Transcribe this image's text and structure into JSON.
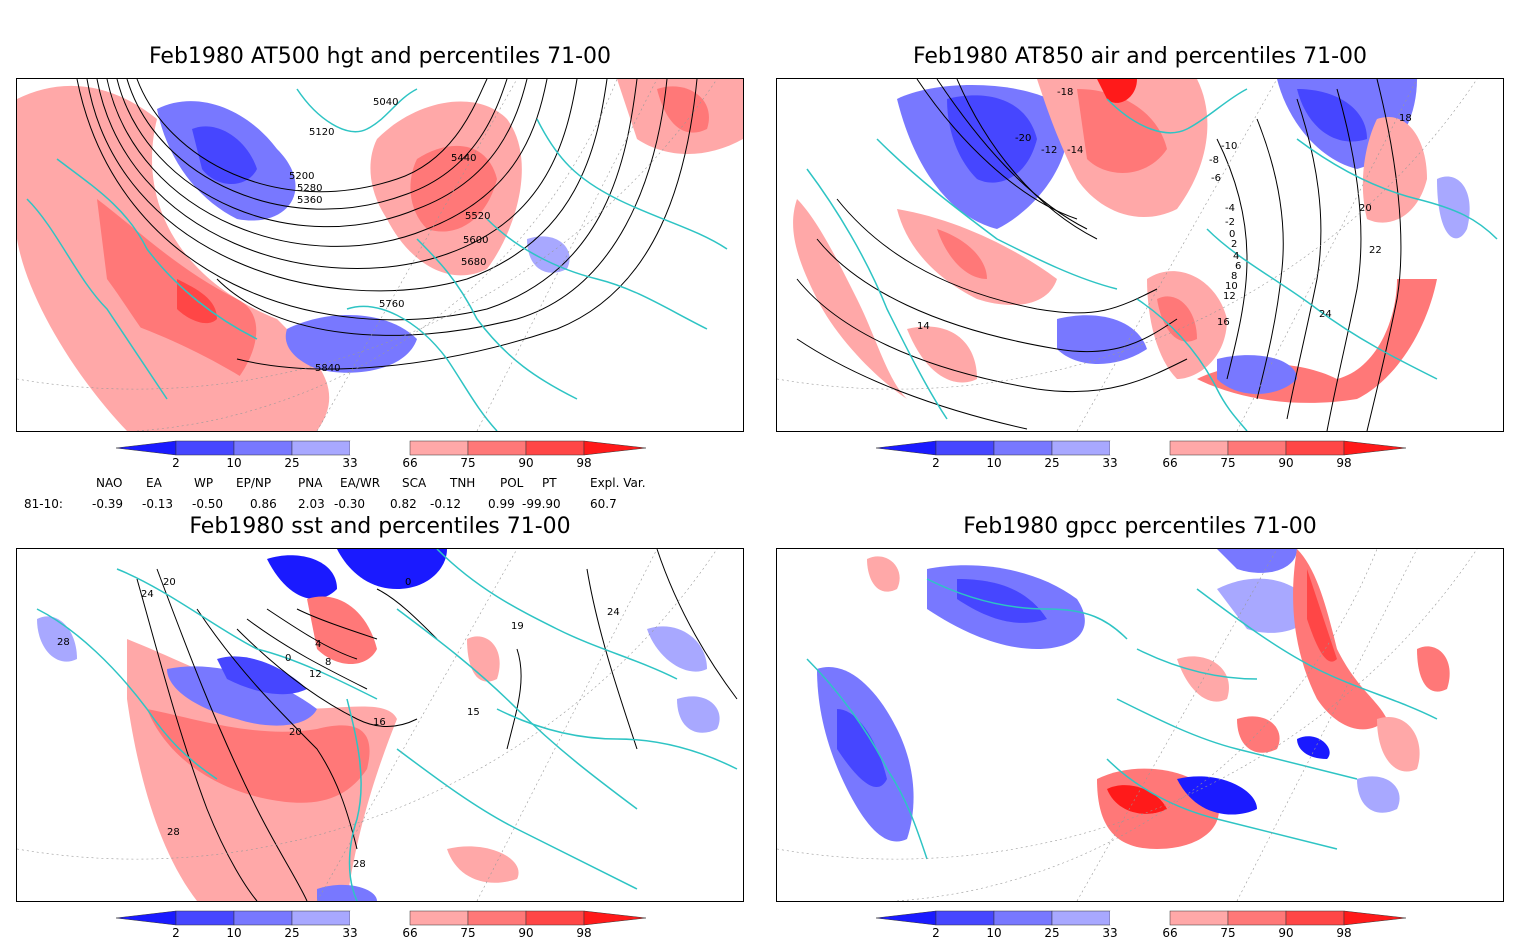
{
  "panels": {
    "hgt": {
      "title": "Feb1980 AT500 hgt and percentiles 71-00",
      "contour_labels": [
        "5040",
        "5120",
        "5200",
        "5280",
        "5360",
        "5440",
        "5520",
        "5600",
        "5680",
        "5760",
        "5840"
      ]
    },
    "air": {
      "title": "Feb1980 AT850 air and percentiles 71-00",
      "contour_labels": [
        "-18",
        "-20",
        "-12",
        "-14",
        "-8",
        "-10",
        "-6",
        "-4",
        "-2",
        "0",
        "2",
        "4",
        "6",
        "8",
        "10",
        "12",
        "14",
        "16",
        "18",
        "20",
        "22",
        "24"
      ]
    },
    "sst": {
      "title": "Feb1980 sst and percentiles 71-00",
      "contour_labels": [
        "24",
        "20",
        "28",
        "0",
        "4",
        "8",
        "12",
        "16",
        "20",
        "28",
        "15",
        "19",
        "24",
        "28",
        "0"
      ]
    },
    "gpcc": {
      "title": "Feb1980 gpcc percentiles 71-00"
    }
  },
  "colorbar": {
    "ticks": [
      "2",
      "10",
      "25",
      "33",
      "66",
      "75",
      "90",
      "98"
    ],
    "colors": [
      "#1a1aff",
      "#4646ff",
      "#7878ff",
      "#a8a8ff",
      "#ffffff",
      "#ffa8a8",
      "#ff7878",
      "#ff4646",
      "#ff1a1a"
    ]
  },
  "indices": {
    "headers": [
      "NAO",
      "EA",
      "WP",
      "EP/NP",
      "PNA",
      "EA/WR",
      "SCA",
      "TNH",
      "POL",
      "PT",
      "Expl. Var."
    ],
    "row_label": "81-10:",
    "values": [
      "-0.39",
      "-0.13",
      "-0.50",
      "0.86",
      "2.03",
      "-0.30",
      "0.82",
      "-0.12",
      "0.99",
      "-99.90",
      "60.7"
    ]
  },
  "colors": {
    "coast": "#2ec4c4",
    "contour": "#000000"
  }
}
